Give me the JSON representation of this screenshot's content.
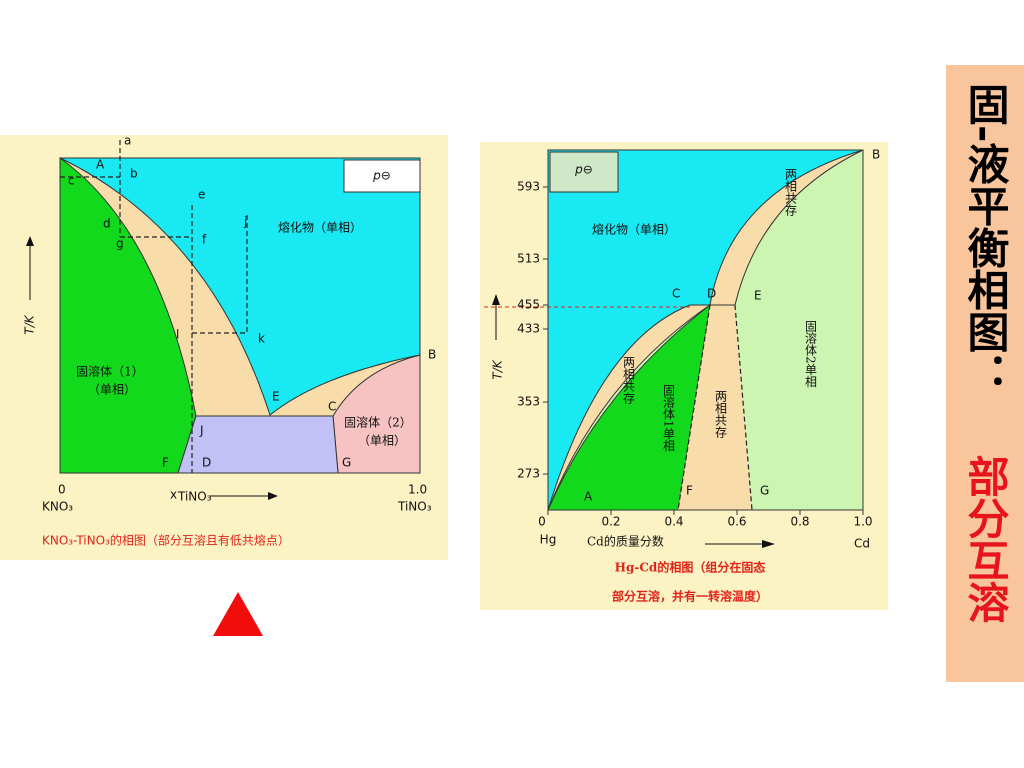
{
  "sidebar": {
    "title": "固-液平衡相图：",
    "subtitle": "部分互溶"
  },
  "left_diagram": {
    "pressure": "p⊖",
    "axis_y": "T/K",
    "x_start": "0",
    "x_start_name": "KNO₃",
    "x_label": "x",
    "x_label_sub": "TiNO₃",
    "x_end": "1.0",
    "x_end_name": "TiNO₃",
    "regions": [
      "熔化物（单相）",
      "固溶体（1）",
      "（单相）",
      "固溶体（2）",
      "（单相）"
    ],
    "points": [
      "a",
      "b",
      "c",
      "d",
      "e",
      "f",
      "g",
      "j",
      "k",
      "l",
      "A",
      "B",
      "C",
      "D",
      "E",
      "F",
      "G",
      "J"
    ],
    "caption": "KNO₃-TiNO₃的相图（部分互溶且有低共熔点）"
  },
  "right_diagram": {
    "pressure": "p⊖",
    "axis_y": "T/K",
    "yticks": [
      "593",
      "513",
      "455",
      "433",
      "353",
      "273"
    ],
    "xticks": [
      "0",
      "0.2",
      "0.4",
      "0.6",
      "0.8",
      "1.0"
    ],
    "x_start_name": "Hg",
    "x_end_name": "Cd",
    "x_label": "Cd的质量分数",
    "regions": [
      "熔化物（单相）",
      "两相共存",
      "两相共存",
      "固溶体1单相",
      "两相共存",
      "固溶体2单相"
    ],
    "points": [
      "A",
      "B",
      "C",
      "D",
      "E",
      "F",
      "G"
    ],
    "caption": [
      "Hg-Cd的相图（组分在固态",
      "部分互溶，并有一转溶温度）"
    ]
  }
}
